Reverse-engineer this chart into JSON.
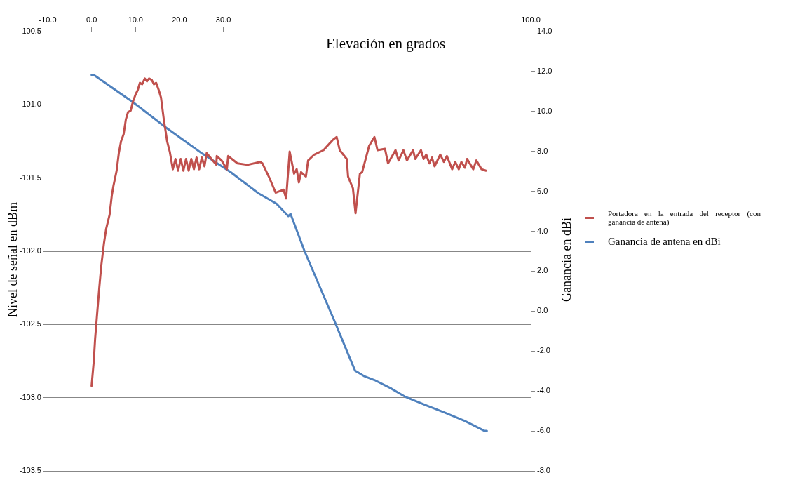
{
  "chart_data": {
    "type": "line",
    "xlabel": "Elevación en grados",
    "ylabel": "Nivel de señal en dBm",
    "y2label": "Ganancia en dBi",
    "xlim": [
      -10,
      100
    ],
    "xticks": [
      {
        "value": -10,
        "label": "-10.0"
      },
      {
        "value": 0,
        "label": "0.0"
      },
      {
        "value": 10,
        "label": "10.0"
      },
      {
        "value": 20,
        "label": "20.0"
      },
      {
        "value": 30,
        "label": "30.0"
      },
      {
        "value": 100,
        "label": "100.0"
      }
    ],
    "ylim": [
      -103.5,
      -100.5
    ],
    "yticks": [
      {
        "value": -103.5,
        "label": "-103.5"
      },
      {
        "value": -103,
        "label": "-103.0"
      },
      {
        "value": -102.5,
        "label": "-102.5"
      },
      {
        "value": -102,
        "label": "-102.0"
      },
      {
        "value": -101.5,
        "label": "-101.5"
      },
      {
        "value": -101,
        "label": "-101.0"
      },
      {
        "value": -100.5,
        "label": "-100.5"
      }
    ],
    "y2lim": [
      -8,
      14
    ],
    "y2ticks": [
      {
        "value": -8,
        "label": "-8.0"
      },
      {
        "value": -6,
        "label": "-6.0"
      },
      {
        "value": -4,
        "label": "-4.0"
      },
      {
        "value": -2,
        "label": "-2.0"
      },
      {
        "value": 0,
        "label": "0.0"
      },
      {
        "value": 2,
        "label": "2.0"
      },
      {
        "value": 4,
        "label": "4.0"
      },
      {
        "value": 6,
        "label": "6.0"
      },
      {
        "value": 8,
        "label": "8.0"
      },
      {
        "value": 10,
        "label": "10.0"
      },
      {
        "value": 12,
        "label": "12.0"
      },
      {
        "value": 14,
        "label": "14.0"
      }
    ],
    "grid": "y",
    "legend": "right",
    "marker": "none",
    "line_style": "solid",
    "series": [
      {
        "name": "Portadora en la entrada del receptor (con ganancia de antena)",
        "color": "#c0504d",
        "x": [
          0,
          0.5,
          0.8,
          1.2,
          1.75,
          2.2,
          2.8,
          3.3,
          4.1,
          4.6,
          5.0,
          5.7,
          6.2,
          6.7,
          7.3,
          7.8,
          8.3,
          8.9,
          9.4,
          10.0,
          10.5,
          11.0,
          11.5,
          12.1,
          12.6,
          13.1,
          13.7,
          14.2,
          14.7,
          15.3,
          15.8,
          16.4,
          17.2,
          17.8,
          18.5,
          19.1,
          19.7,
          20.3,
          20.9,
          21.5,
          22.1,
          22.7,
          23.3,
          23.9,
          24.5,
          25.1,
          25.7,
          26.2,
          27.3,
          28.4,
          28.5,
          29.6,
          30.8,
          31.1,
          33.2,
          35.5,
          38.4,
          38.9,
          40.5,
          41.9,
          43.7,
          44.3,
          45.1,
          46.1,
          46.7,
          47.2,
          47.7,
          48.8,
          49.3,
          50.7,
          52.8,
          54.9,
          55.8,
          56.5,
          58.1,
          58.4,
          59.5,
          60.1,
          61.1,
          61.6,
          63.2,
          64.4,
          65.1,
          66.8,
          67.5,
          69.2,
          69.9,
          71.0,
          71.8,
          73.2,
          73.7,
          75.0,
          75.6,
          76.2,
          76.9,
          77.5,
          78.1,
          79.4,
          80.2,
          80.9,
          82.1,
          82.8,
          83.6,
          84.2,
          85.0,
          85.5,
          86.9,
          87.6,
          88.8,
          89.8
        ],
        "values": [
          -102.92,
          -102.75,
          -102.6,
          -102.45,
          -102.25,
          -102.1,
          -101.95,
          -101.85,
          -101.75,
          -101.62,
          -101.55,
          -101.45,
          -101.33,
          -101.25,
          -101.2,
          -101.1,
          -101.05,
          -101.04,
          -100.98,
          -100.93,
          -100.9,
          -100.85,
          -100.86,
          -100.82,
          -100.84,
          -100.82,
          -100.83,
          -100.86,
          -100.85,
          -100.9,
          -100.95,
          -101.09,
          -101.25,
          -101.32,
          -101.44,
          -101.37,
          -101.45,
          -101.37,
          -101.45,
          -101.37,
          -101.45,
          -101.37,
          -101.44,
          -101.36,
          -101.44,
          -101.36,
          -101.42,
          -101.33,
          -101.37,
          -101.41,
          -101.35,
          -101.38,
          -101.44,
          -101.35,
          -101.4,
          -101.41,
          -101.39,
          -101.4,
          -101.5,
          -101.6,
          -101.58,
          -101.64,
          -101.32,
          -101.47,
          -101.44,
          -101.53,
          -101.46,
          -101.49,
          -101.38,
          -101.34,
          -101.31,
          -101.24,
          -101.22,
          -101.31,
          -101.37,
          -101.49,
          -101.57,
          -101.74,
          -101.47,
          -101.46,
          -101.28,
          -101.22,
          -101.31,
          -101.3,
          -101.4,
          -101.31,
          -101.38,
          -101.31,
          -101.38,
          -101.31,
          -101.37,
          -101.31,
          -101.37,
          -101.34,
          -101.4,
          -101.36,
          -101.42,
          -101.34,
          -101.39,
          -101.35,
          -101.44,
          -101.39,
          -101.44,
          -101.39,
          -101.43,
          -101.37,
          -101.44,
          -101.38,
          -101.44,
          -101.45
        ]
      },
      {
        "name": "Ganancia de antena en dBi",
        "color": "#4f81bd",
        "axis": "y2",
        "x": [
          0,
          0.5,
          9.4,
          16.6,
          25.2,
          31.6,
          38.0,
          42.1,
          44.8,
          45.3,
          48.5,
          52.0,
          55.5,
          58.7,
          60.0,
          62.0,
          64.4,
          68.0,
          71.5,
          76.0,
          80.4,
          85.0,
          89.5,
          90.0
        ],
        "values": [
          11.83,
          11.83,
          10.47,
          9.25,
          7.89,
          6.97,
          5.9,
          5.38,
          4.76,
          4.87,
          3.0,
          1.2,
          -0.6,
          -2.3,
          -2.98,
          -3.25,
          -3.45,
          -3.85,
          -4.3,
          -4.7,
          -5.08,
          -5.5,
          -6.0,
          -6.0
        ]
      }
    ]
  }
}
